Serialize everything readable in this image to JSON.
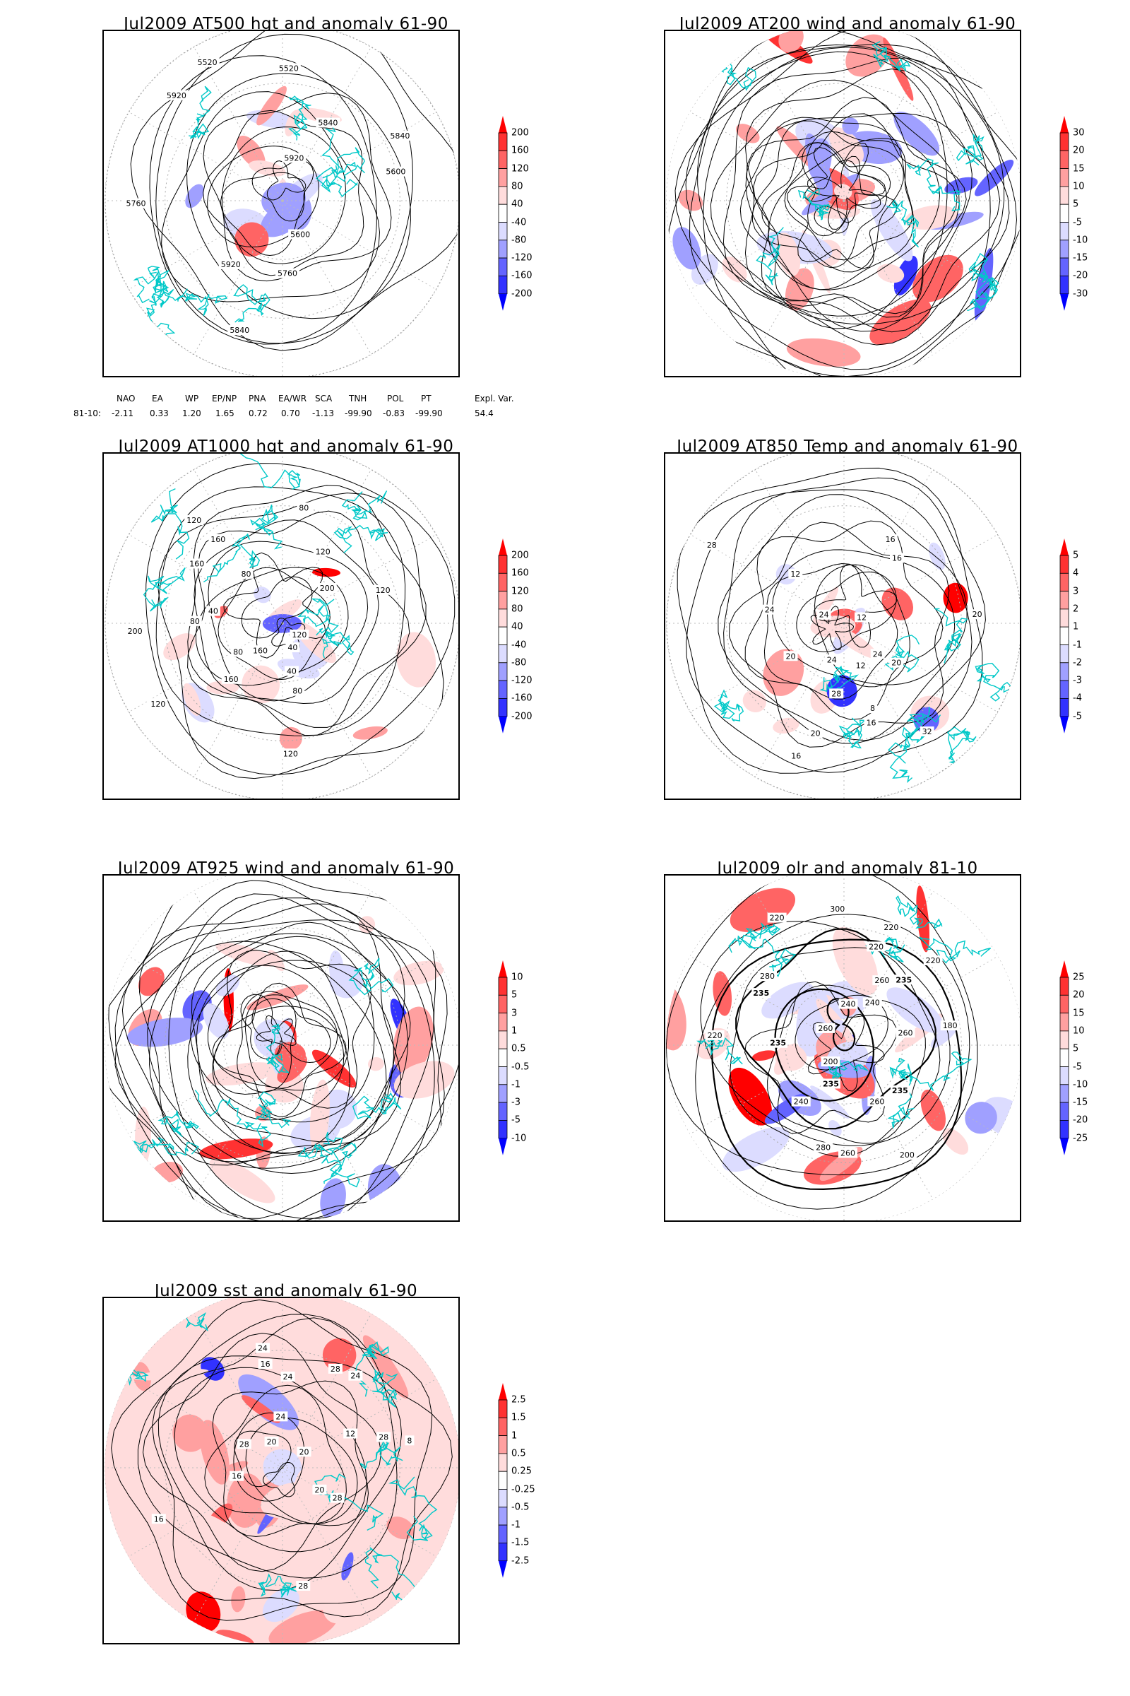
{
  "panels": [
    {
      "title": "Jul2009 AT500 hgt and anomaly 61-90",
      "kind": "hgt",
      "colorbar": [
        "200",
        "160",
        "120",
        "80",
        "40",
        "-40",
        "-80",
        "-120",
        "-160",
        "-200"
      ],
      "contour_labels": [
        "5840",
        "5760",
        "5520",
        "5920",
        "5920",
        "5520",
        "5600",
        "5840",
        "5600",
        "5760",
        "5920",
        "5840"
      ]
    },
    {
      "title": "Jul2009 AT200 wind and anomaly 61-90",
      "kind": "wind",
      "colorbar": [
        "30",
        "20",
        "15",
        "10",
        "5",
        "-5",
        "-10",
        "-15",
        "-20",
        "-30"
      ],
      "contour_labels": []
    },
    {
      "title": "Jul2009 AT1000 hgt and anomaly 61-90",
      "kind": "hgt",
      "colorbar": [
        "200",
        "160",
        "120",
        "80",
        "40",
        "-40",
        "-80",
        "-120",
        "-160",
        "-200"
      ],
      "contour_labels": [
        "80",
        "120",
        "160",
        "160",
        "200",
        "120",
        "80",
        "80",
        "40",
        "160",
        "120",
        "80",
        "40",
        "200",
        "160",
        "80",
        "120",
        "40",
        "120",
        "120"
      ]
    },
    {
      "title": "Jul2009 AT850 Temp and anomaly 61-90",
      "kind": "temp",
      "colorbar": [
        "5",
        "4",
        "3",
        "2",
        "1",
        "-1",
        "-2",
        "-3",
        "-4",
        "-5"
      ],
      "contour_labels": [
        "16",
        "16",
        "12",
        "20",
        "24",
        "12",
        "24",
        "28",
        "20",
        "8",
        "12",
        "16",
        "20",
        "24",
        "28",
        "32",
        "16",
        "20",
        "24"
      ]
    },
    {
      "title": "Jul2009 AT925 wind and anomaly 61-90",
      "kind": "wind",
      "colorbar": [
        "10",
        "5",
        "3",
        "1",
        "0.5",
        "-0.5",
        "-1",
        "-3",
        "-5",
        "-10"
      ],
      "contour_labels": []
    },
    {
      "title": "Jul2009 olr and anomaly 81-10",
      "kind": "olr",
      "colorbar": [
        "25",
        "20",
        "15",
        "10",
        "5",
        "-5",
        "-10",
        "-15",
        "-20",
        "-25"
      ],
      "contour_labels": [
        "260",
        "235",
        "220",
        "200",
        "260",
        "235",
        "220",
        "240",
        "260",
        "235",
        "220",
        "240",
        "280",
        "260",
        "300",
        "235",
        "220",
        "200",
        "180",
        "240",
        "235",
        "260",
        "280",
        "220"
      ]
    },
    {
      "title": "Jul2009 sst and anomaly 61-90",
      "kind": "sst",
      "colorbar": [
        "2.5",
        "1.5",
        "1",
        "0.5",
        "0.25",
        "-0.25",
        "-0.5",
        "-1",
        "-1.5",
        "-2.5"
      ],
      "contour_labels": [
        "28",
        "28",
        "24",
        "20",
        "16",
        "12",
        "8",
        "24",
        "20",
        "16",
        "28",
        "28",
        "16",
        "20",
        "24",
        "28",
        "24"
      ]
    }
  ],
  "indices": {
    "headers": [
      "NAO",
      "EA",
      "WP",
      "EP/NP",
      "PNA",
      "EA/WR",
      "SCA",
      "TNH",
      "POL",
      "PT",
      "Expl. Var."
    ],
    "row_label": "81-10:",
    "values": [
      "-2.11",
      "0.33",
      "1.20",
      "1.65",
      "0.72",
      "0.70",
      "-1.13",
      "-99.90",
      "-0.83",
      "-99.90",
      "54.4"
    ]
  },
  "colors": {
    "red_scale": [
      "#ff0000",
      "#ff3232",
      "#ff6464",
      "#ffa0a0",
      "#ffdcdc"
    ],
    "blue_scale": [
      "#dcdcff",
      "#a0a0ff",
      "#6464ff",
      "#3232ff",
      "#0000ff"
    ],
    "coast": "#00c8c8"
  }
}
